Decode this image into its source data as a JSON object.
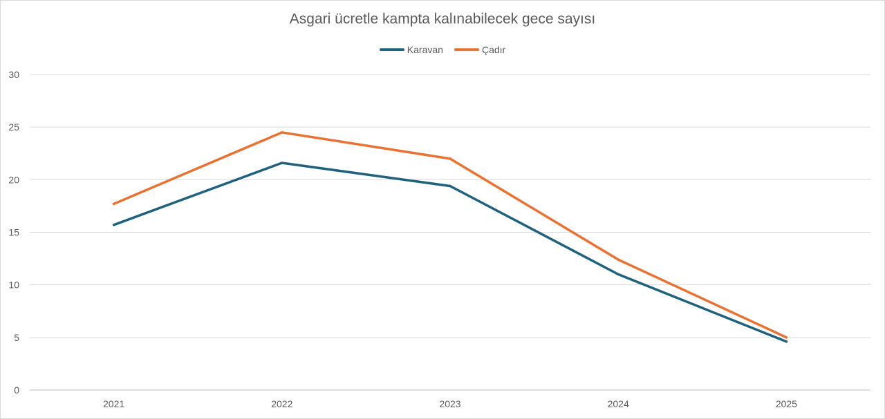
{
  "chart_data": {
    "type": "line",
    "title": "Asgari ücretle kampta kalınabilecek gece sayısı",
    "categories": [
      "2021",
      "2022",
      "2023",
      "2024",
      "2025"
    ],
    "series": [
      {
        "name": "Karavan",
        "values": [
          15.7,
          21.6,
          19.4,
          11.0,
          4.6
        ],
        "color": "#1f617f"
      },
      {
        "name": "Çadır",
        "values": [
          17.7,
          24.5,
          22.0,
          12.4,
          5.0
        ],
        "color": "#e97132"
      }
    ],
    "ylim": [
      0,
      30
    ],
    "yticks": [
      "0",
      "5",
      "10",
      "15",
      "20",
      "25",
      "30"
    ],
    "grid": true,
    "legend_position": "top"
  }
}
